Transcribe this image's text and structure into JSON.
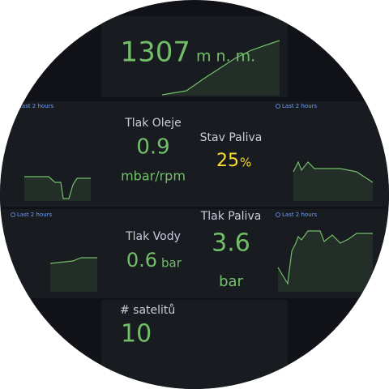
{
  "altitude": {
    "value": 1307,
    "unit": "m n. m."
  },
  "time_ranges": [
    "Last 2 hours",
    "Last 2 hours",
    "Last 2 hours",
    "Last 2 hours"
  ],
  "panels": [
    {
      "title": "Tlak Oleje",
      "value": 0.9,
      "unit": "mbar/rpm"
    },
    {
      "title": "Stav Paliva",
      "value": 25,
      "unit": "%"
    },
    {
      "title": "Tlak Vody",
      "value": 0.6,
      "unit": "bar"
    },
    {
      "title": "Tlak Paliva",
      "value": 3.6,
      "unit": "bar"
    },
    {
      "title": "# satelitů",
      "value": 10
    }
  ]
}
